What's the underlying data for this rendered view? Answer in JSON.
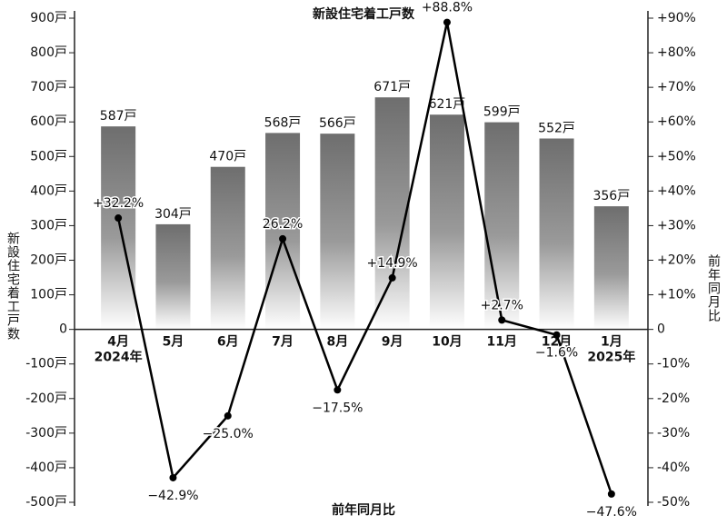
{
  "chart_data": {
    "type": "bar-line",
    "title": "新設住宅着工戸数",
    "ylabel": "新設住宅着工戸数",
    "y2label": "前年同月比",
    "xlabel": "前年同月比",
    "categories": [
      "4月",
      "5月",
      "6月",
      "7月",
      "8月",
      "9月",
      "10月",
      "11月",
      "12月",
      "1月"
    ],
    "years": [
      "2024年",
      null,
      null,
      null,
      null,
      null,
      null,
      null,
      null,
      "2025年"
    ],
    "series": [
      {
        "type": "bar",
        "color": "#6e6e6e",
        "values": [
          587,
          304,
          470,
          568,
          566,
          671,
          621,
          599,
          552,
          356
        ],
        "value_labels": [
          "587戸",
          "304戸",
          "470戸",
          "568戸",
          "566戸",
          "671戸",
          "621戸",
          "599戸",
          "552戸",
          "356戸"
        ]
      },
      {
        "type": "line",
        "axis": "y2",
        "color": "#000000",
        "values": [
          32.2,
          -42.9,
          -25.0,
          26.2,
          -17.5,
          14.9,
          88.8,
          2.7,
          -1.6,
          -47.6
        ],
        "value_labels": [
          "+32.2%",
          "−42.9%",
          "−25.0%",
          "26.2%",
          "−17.5%",
          "+14.9%",
          "+88.8%",
          "+2.7%",
          "−1.6%",
          "−47.6%"
        ]
      }
    ],
    "ylim": [
      -500,
      900
    ],
    "yticks": [
      {
        "value": -500,
        "label": "-500戸"
      },
      {
        "value": -400,
        "label": "-400戸"
      },
      {
        "value": -300,
        "label": "-300戸"
      },
      {
        "value": -200,
        "label": "-200戸"
      },
      {
        "value": -100,
        "label": "-100戸"
      },
      0,
      {
        "value": 100,
        "label": "100戸"
      },
      {
        "value": 200,
        "label": "200戸"
      },
      {
        "value": 300,
        "label": "300戸"
      },
      {
        "value": 400,
        "label": "400戸"
      },
      {
        "value": 500,
        "label": "500戸"
      },
      {
        "value": 600,
        "label": "600戸"
      },
      {
        "value": 700,
        "label": "700戸"
      },
      {
        "value": 800,
        "label": "800戸"
      },
      {
        "value": 900,
        "label": "900戸"
      }
    ],
    "y2lim": [
      -50,
      90
    ],
    "y2ticks": [
      {
        "value": -50,
        "label": "-50%"
      },
      {
        "value": -40,
        "label": "-40%"
      },
      {
        "value": -30,
        "label": "-30%"
      },
      {
        "value": -20,
        "label": "-20%"
      },
      {
        "value": -10,
        "label": "-10%"
      },
      0,
      {
        "value": 10,
        "label": "+10%"
      },
      {
        "value": 20,
        "label": "+20%"
      },
      {
        "value": 30,
        "label": "+30%"
      },
      {
        "value": 40,
        "label": "+40%"
      },
      {
        "value": 50,
        "label": "+50%"
      },
      {
        "value": 60,
        "label": "+60%"
      },
      {
        "value": 70,
        "label": "+70%"
      },
      {
        "value": 80,
        "label": "+80%"
      },
      {
        "value": 90,
        "label": "+90%"
      }
    ]
  }
}
